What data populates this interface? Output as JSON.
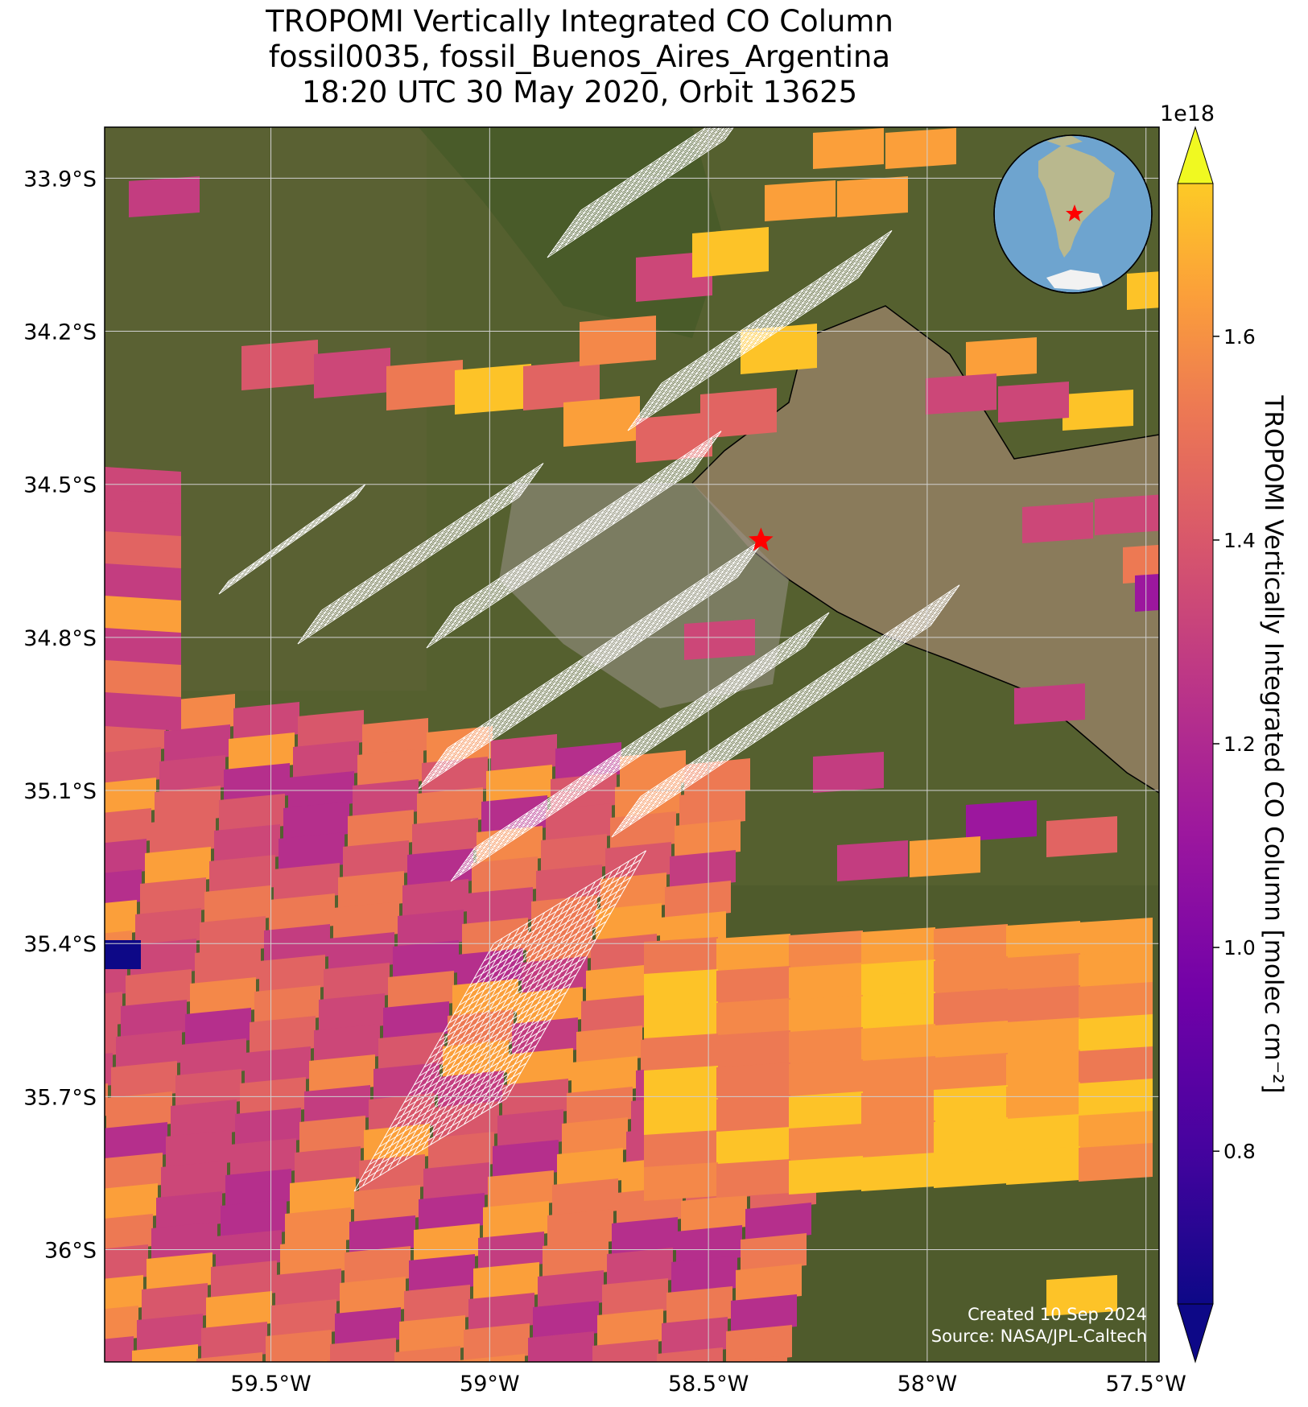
{
  "title": {
    "line1": "TROPOMI Vertically Integrated CO Column",
    "line2": "fossil0035, fossil_Buenos_Aires_Argentina",
    "line3": "18:20 UTC 30 May 2020, Orbit 13625"
  },
  "map": {
    "lon_range": [
      -59.88,
      -57.47
    ],
    "lat_range": [
      -36.22,
      -33.8
    ],
    "lon_ticks": [
      -59.5,
      -59.0,
      -58.5,
      -58.0,
      -57.5
    ],
    "lon_tick_labels": [
      "59.5°W",
      "59°W",
      "58.5°W",
      "58°W",
      "57.5°W"
    ],
    "lat_ticks": [
      -33.9,
      -34.2,
      -34.5,
      -34.8,
      -35.1,
      -35.4,
      -35.7,
      -36.0
    ],
    "lat_tick_labels": [
      "33.9°S",
      "34.2°S",
      "34.5°S",
      "34.8°S",
      "35.1°S",
      "35.4°S",
      "35.7°S",
      "36°S"
    ],
    "target_marker": {
      "lon": -58.38,
      "lat": -34.61,
      "color": "#ff0000",
      "icon": "star-icon"
    },
    "inset_globe": {
      "icon": "globe-icon",
      "marker_color": "#ff0000"
    },
    "credit_line1": "Created 10 Sep 2024",
    "credit_line2": "Source: NASA/JPL-Caltech",
    "background": "satellite imagery",
    "grid": true
  },
  "colorbar": {
    "label": "TROPOMI Vertically Integrated CO Column [molec cm⁻²]",
    "exponent": "1e18",
    "range": [
      0.65,
      1.75
    ],
    "ticks": [
      0.8,
      1.0,
      1.2,
      1.4,
      1.6
    ],
    "tick_labels": [
      "0.8",
      "1.0",
      "1.2",
      "1.4",
      "1.6"
    ],
    "colormap": "plasma",
    "extend": "both"
  },
  "colors": {
    "land": "#4e5c2e",
    "water": "#8a7a5a",
    "grid": "#d0d0d0",
    "target_grid": "#ffffff"
  }
}
